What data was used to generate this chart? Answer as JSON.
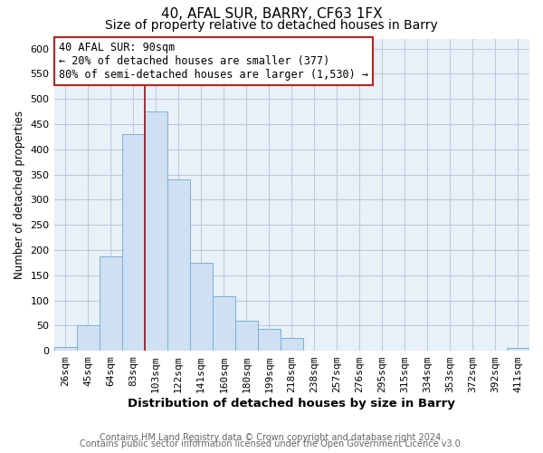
{
  "title": "40, AFAL SUR, BARRY, CF63 1FX",
  "subtitle": "Size of property relative to detached houses in Barry",
  "xlabel": "Distribution of detached houses by size in Barry",
  "ylabel": "Number of detached properties",
  "categories": [
    "26sqm",
    "45sqm",
    "64sqm",
    "83sqm",
    "103sqm",
    "122sqm",
    "141sqm",
    "160sqm",
    "180sqm",
    "199sqm",
    "218sqm",
    "238sqm",
    "257sqm",
    "276sqm",
    "295sqm",
    "315sqm",
    "334sqm",
    "353sqm",
    "372sqm",
    "392sqm",
    "411sqm"
  ],
  "values": [
    8,
    50,
    188,
    430,
    475,
    340,
    175,
    108,
    60,
    44,
    25,
    0,
    0,
    0,
    0,
    0,
    0,
    0,
    0,
    0,
    5
  ],
  "bar_color": "#cfe0f2",
  "bar_edge_color": "#7cb0d8",
  "vline_x": 3.5,
  "vline_color": "#9b1010",
  "annotation_line1": "40 AFAL SUR: 90sqm",
  "annotation_line2": "← 20% of detached houses are smaller (377)",
  "annotation_line3": "80% of semi-detached houses are larger (1,530) →",
  "annotation_box_color": "white",
  "annotation_box_edge_color": "#bb2222",
  "ylim": [
    0,
    620
  ],
  "yticks": [
    0,
    50,
    100,
    150,
    200,
    250,
    300,
    350,
    400,
    450,
    500,
    550,
    600
  ],
  "footer_line1": "Contains HM Land Registry data © Crown copyright and database right 2024.",
  "footer_line2": "Contains public sector information licensed under the Open Government Licence v3.0.",
  "background_color": "#ffffff",
  "plot_bg_color": "#e8f0f8",
  "grid_color": "#b8c8d8",
  "title_fontsize": 11,
  "subtitle_fontsize": 10,
  "xlabel_fontsize": 9.5,
  "ylabel_fontsize": 8.5,
  "tick_fontsize": 8,
  "annotation_fontsize": 8.5,
  "footer_fontsize": 7
}
